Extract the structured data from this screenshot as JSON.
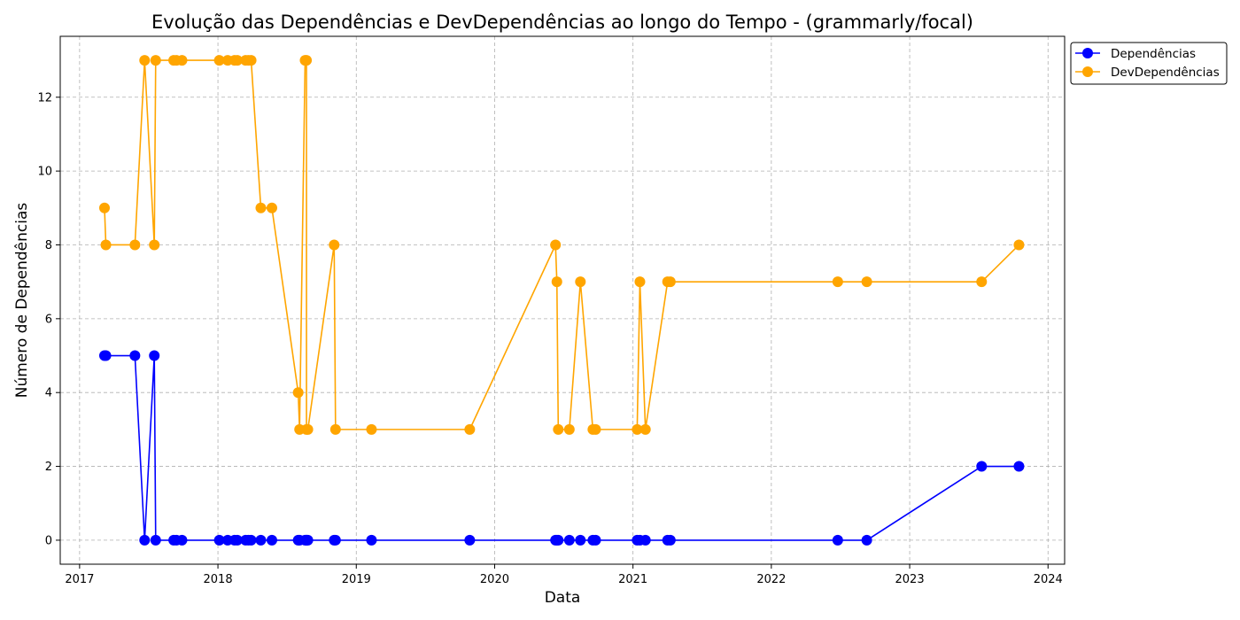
{
  "chart_data": {
    "type": "line",
    "title": "Evolução das Dependências e DevDependências ao longo do Tempo - (grammarly/focal)",
    "xlabel": "Data",
    "ylabel": "Número de Dependências",
    "xlim": [
      2016.86,
      2024.12
    ],
    "ylim": [
      -0.65,
      13.65
    ],
    "x_ticks": [
      2017,
      2018,
      2019,
      2020,
      2021,
      2022,
      2023,
      2024
    ],
    "y_ticks": [
      0,
      2,
      4,
      6,
      8,
      10,
      12
    ],
    "grid": true,
    "legend_position": "outside top-right",
    "x": [
      2017.18,
      2017.19,
      2017.4,
      2017.47,
      2017.54,
      2017.55,
      2017.68,
      2017.7,
      2017.74,
      2018.01,
      2018.07,
      2018.12,
      2018.14,
      2018.2,
      2018.22,
      2018.24,
      2018.31,
      2018.39,
      2018.58,
      2018.59,
      2018.63,
      2018.64,
      2018.64,
      2018.65,
      2018.84,
      2018.85,
      2019.11,
      2019.82,
      2020.44,
      2020.45,
      2020.46,
      2020.54,
      2020.62,
      2020.71,
      2020.73,
      2021.03,
      2021.05,
      2021.09,
      2021.25,
      2021.27,
      2022.48,
      2022.69,
      2023.52,
      2023.79
    ],
    "series": [
      {
        "name": "Dependências",
        "color": "#0000ff",
        "values": [
          5,
          5,
          5,
          0,
          5,
          0,
          0,
          0,
          0,
          0,
          0,
          0,
          0,
          0,
          0,
          0,
          0,
          0,
          0,
          0,
          0,
          0,
          0,
          0,
          0,
          0,
          0,
          0,
          0,
          0,
          0,
          0,
          0,
          0,
          0,
          0,
          0,
          0,
          0,
          0,
          0,
          0,
          2,
          2
        ]
      },
      {
        "name": "DevDependências",
        "color": "#ffa500",
        "values": [
          9,
          8,
          8,
          13,
          8,
          13,
          13,
          13,
          13,
          13,
          13,
          13,
          13,
          13,
          13,
          13,
          9,
          9,
          4,
          3,
          13,
          13,
          3,
          3,
          8,
          3,
          3,
          3,
          8,
          7,
          3,
          3,
          7,
          3,
          3,
          3,
          7,
          3,
          7,
          7,
          7,
          7,
          7,
          8
        ]
      }
    ]
  }
}
